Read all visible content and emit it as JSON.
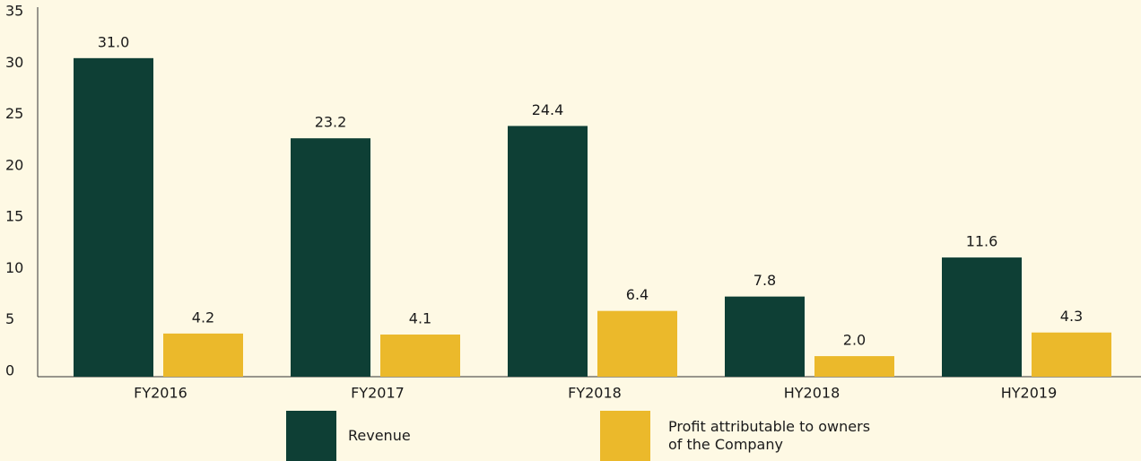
{
  "chart_data": {
    "type": "bar",
    "categories": [
      "FY2016",
      "FY2017",
      "FY2018",
      "HY2018",
      "HY2019"
    ],
    "series": [
      {
        "name": "Revenue",
        "color": "#0e3f35",
        "values": [
          31.0,
          23.2,
          24.4,
          7.8,
          11.6
        ],
        "value_labels": [
          "31.0",
          "23.2",
          "24.4",
          "7.8",
          "11.6"
        ]
      },
      {
        "name": "Profit attributable to owners of the Company",
        "color": "#ebb92b",
        "values": [
          4.2,
          4.1,
          6.4,
          2.0,
          4.3
        ],
        "value_labels": [
          "4.2",
          "4.1",
          "6.4",
          "2.0",
          "4.3"
        ]
      }
    ],
    "ylim": [
      0,
      35
    ],
    "yticks": [
      0,
      5,
      10,
      15,
      20,
      25,
      30,
      35
    ],
    "grid": false
  }
}
